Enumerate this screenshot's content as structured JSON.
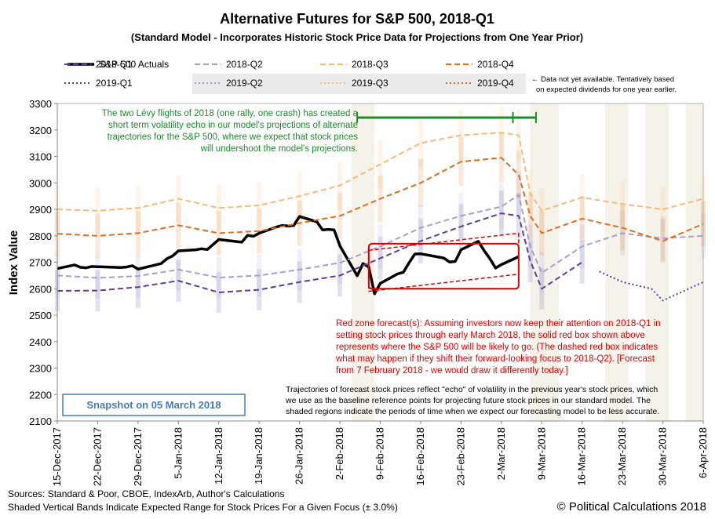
{
  "chart_data": {
    "type": "line",
    "title": "Alternative Futures for S&P 500, 2018-Q1",
    "subtitle": "(Standard Model - Incorporates Historic Stock Price Data for Projections from One Year Prior)",
    "ylabel": "Index Value",
    "xlabel": "",
    "ylim": [
      2100,
      3300
    ],
    "yticks": [
      "2100",
      "2200",
      "2300",
      "2400",
      "2500",
      "2600",
      "2700",
      "2800",
      "2900",
      "3000",
      "3100",
      "3200",
      "3300"
    ],
    "x_range": [
      "2017-12-15",
      "2018-04-06"
    ],
    "xticks": [
      "15-Dec-2017",
      "22-Dec-2017",
      "29-Dec-2017",
      "5-Jan-2018",
      "12-Jan-2018",
      "19-Jan-2018",
      "26-Jan-2018",
      "2-Feb-2018",
      "9-Feb-2018",
      "16-Feb-2018",
      "23-Feb-2018",
      "2-Mar-2018",
      "9-Mar-2018",
      "16-Mar-2018",
      "23-Mar-2018",
      "30-Mar-2018",
      "6-Apr-2018"
    ],
    "grid": false,
    "legend_position": "top",
    "legend_note": "← Data not yet available. Tentatively based on expected dividends for one year earlier.",
    "series": [
      {
        "name": "S&P 500 Actuals",
        "color": "#000000",
        "style": "solid",
        "x": [
          "2017-12-15",
          "2017-12-18",
          "2017-12-19",
          "2017-12-20",
          "2017-12-21",
          "2017-12-22",
          "2017-12-26",
          "2017-12-27",
          "2017-12-28",
          "2017-12-29",
          "2018-01-02",
          "2018-01-03",
          "2018-01-04",
          "2018-01-05",
          "2018-01-08",
          "2018-01-09",
          "2018-01-10",
          "2018-01-11",
          "2018-01-12",
          "2018-01-16",
          "2018-01-17",
          "2018-01-18",
          "2018-01-19",
          "2018-01-22",
          "2018-01-23",
          "2018-01-24",
          "2018-01-25",
          "2018-01-26",
          "2018-01-29",
          "2018-01-30",
          "2018-01-31",
          "2018-02-01",
          "2018-02-02",
          "2018-02-05",
          "2018-02-06",
          "2018-02-07",
          "2018-02-08",
          "2018-02-09",
          "2018-02-12",
          "2018-02-13",
          "2018-02-14",
          "2018-02-15",
          "2018-02-16",
          "2018-02-20",
          "2018-02-21",
          "2018-02-22",
          "2018-02-23",
          "2018-02-26",
          "2018-02-27",
          "2018-02-28",
          "2018-03-01",
          "2018-03-02",
          "2018-03-05"
        ],
        "y": [
          2676,
          2690,
          2681,
          2679,
          2684,
          2683,
          2680,
          2682,
          2687,
          2674,
          2695,
          2713,
          2724,
          2743,
          2747,
          2751,
          2748,
          2767,
          2786,
          2776,
          2802,
          2798,
          2810,
          2833,
          2839,
          2837,
          2839,
          2873,
          2853,
          2822,
          2824,
          2822,
          2762,
          2649,
          2695,
          2682,
          2581,
          2620,
          2656,
          2662,
          2698,
          2731,
          2732,
          2716,
          2701,
          2703,
          2747,
          2779,
          2744,
          2714,
          2678,
          2691,
          2721
        ]
      },
      {
        "name": "2018-Q1",
        "color": "#5b3f9c",
        "style": "dashed",
        "x": [
          "2017-12-15",
          "2017-12-22",
          "2017-12-29",
          "2018-01-05",
          "2018-01-12",
          "2018-01-19",
          "2018-01-26",
          "2018-02-02",
          "2018-02-09",
          "2018-02-16",
          "2018-02-23",
          "2018-03-02",
          "2018-03-05",
          "2018-03-07",
          "2018-03-09",
          "2018-03-16"
        ],
        "y": [
          2592,
          2593,
          2606,
          2630,
          2586,
          2596,
          2625,
          2650,
          2715,
          2780,
          2835,
          2885,
          2875,
          2705,
          2600,
          2700
        ]
      },
      {
        "name": "2018-Q2",
        "color": "#a99ccf",
        "style": "dashed",
        "x": [
          "2017-12-15",
          "2017-12-22",
          "2017-12-29",
          "2018-01-05",
          "2018-01-12",
          "2018-01-19",
          "2018-01-26",
          "2018-02-02",
          "2018-02-09",
          "2018-02-16",
          "2018-02-23",
          "2018-03-02",
          "2018-03-05",
          "2018-03-07",
          "2018-03-09",
          "2018-03-16",
          "2018-03-23",
          "2018-03-30",
          "2018-04-06"
        ],
        "y": [
          2650,
          2641,
          2648,
          2672,
          2642,
          2650,
          2672,
          2698,
          2760,
          2830,
          2875,
          2910,
          2955,
          2760,
          2660,
          2760,
          2810,
          2790,
          2800
        ]
      },
      {
        "name": "2018-Q3",
        "color": "#f6b97c",
        "style": "dashed",
        "x": [
          "2017-12-15",
          "2017-12-22",
          "2017-12-29",
          "2018-01-05",
          "2018-01-12",
          "2018-01-19",
          "2018-01-26",
          "2018-02-02",
          "2018-02-09",
          "2018-02-16",
          "2018-02-23",
          "2018-03-02",
          "2018-03-05",
          "2018-03-07",
          "2018-03-09",
          "2018-03-16",
          "2018-03-23",
          "2018-03-30",
          "2018-04-06"
        ],
        "y": [
          2900,
          2895,
          2905,
          2940,
          2905,
          2915,
          2950,
          2990,
          3070,
          3150,
          3180,
          3190,
          3180,
          2960,
          2895,
          2945,
          2920,
          2900,
          2940
        ]
      },
      {
        "name": "2018-Q4",
        "color": "#e06d20",
        "style": "dashed",
        "x": [
          "2017-12-15",
          "2017-12-22",
          "2017-12-29",
          "2018-01-05",
          "2018-01-12",
          "2018-01-19",
          "2018-01-26",
          "2018-02-02",
          "2018-02-09",
          "2018-02-16",
          "2018-02-23",
          "2018-03-02",
          "2018-03-05",
          "2018-03-07",
          "2018-03-09",
          "2018-03-16",
          "2018-03-23",
          "2018-03-30",
          "2018-04-06"
        ],
        "y": [
          2808,
          2800,
          2810,
          2840,
          2810,
          2818,
          2848,
          2875,
          2940,
          3000,
          3080,
          3095,
          3030,
          2875,
          2810,
          2865,
          2830,
          2780,
          2845
        ]
      },
      {
        "name": "2019-Q1",
        "color": "#5b3f9c",
        "style": "dotted",
        "x": [
          "2018-03-19",
          "2018-03-23",
          "2018-03-28",
          "2018-03-30",
          "2018-04-06"
        ],
        "y": [
          2665,
          2625,
          2600,
          2555,
          2625
        ]
      },
      {
        "name": "2019-Q2",
        "color": "#a99ccf",
        "style": "dotted",
        "x": [],
        "y": []
      },
      {
        "name": "2019-Q3",
        "color": "#f6b97c",
        "style": "dotted",
        "x": [],
        "y": []
      },
      {
        "name": "2019-Q4",
        "color": "#e06d20",
        "style": "dotted",
        "x": [],
        "y": []
      }
    ],
    "annotations": {
      "green_text": [
        "The two Lévy  flights of 2018 (one rally, one crash) has created a",
        "short term  volatility echo in our model's projections of alternate",
        "trajectories  for the S&P 500, where we expect that stock prices",
        "will undershoot the model's projections."
      ],
      "red_text": [
        "Red zone forecast(s): Assuming investors now keep their attention on 2018-Q1 in",
        "setting stock prices through early March 2018, the  solid red box shown above",
        "represents where  the S&P 500 will be likely to go.  (The dashed red box indicates",
        "what may happen  if they shift their forward-looking focus to 2018-Q2). [Forecast",
        "from 7 February 2018 - we would draw it differently today.]"
      ],
      "black_text": [
        "Trajectories of forecast stock prices reflect \"echo\" of volatility in  the previous year's stock prices, which",
        "we use as the baseline reference points for projecting future stock prices in our standard model.   The",
        "shaded regions indicate the periods of time when we expect our forecasting model to be less accurate."
      ],
      "snapshot": "Snapshot on 05 March 2018"
    },
    "footer": {
      "sources": "Sources: Standard & Poor, CBOE, IndexArb, Author's Calculations",
      "bands_note": "Shaded Vertical Bands Indicate Expected Range for Stock Prices For a Given Focus (± 3.0%)",
      "copyright": "© Political Calculations 2018"
    }
  }
}
